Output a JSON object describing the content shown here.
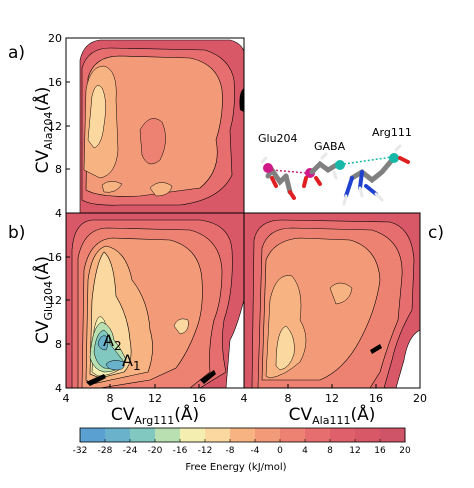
{
  "panels": [
    {
      "label": "a)",
      "ylabel_main": "CV",
      "ylabel_sub": "Ala204",
      "ylabel_unit": "(Å)"
    },
    {
      "label": "b)",
      "ylabel_main": "CV",
      "ylabel_sub": "Glu204",
      "ylabel_unit": "(Å)",
      "xlabel_main": "CV",
      "xlabel_sub": "Arg111",
      "xlabel_unit": "(Å)"
    },
    {
      "label": "c)",
      "xlabel_main": "CV",
      "xlabel_sub": "Ala111",
      "xlabel_unit": "(Å)"
    }
  ],
  "annotations": {
    "A2": {
      "letter": "A",
      "sub": "2"
    },
    "A1": {
      "letter": "A",
      "sub": "1"
    }
  },
  "molecule_labels": {
    "glu": "Glu204",
    "gaba": "GABA",
    "arg": "Arg111"
  },
  "colors": {
    "atom_carbon": "#808080",
    "atom_oxygen": "#e02020",
    "atom_nitrogen": "#2040d0",
    "atom_hydrogen": "#e8e8e8",
    "marker_magenta": "#d0188a",
    "marker_teal": "#18b8a8",
    "bond_dotted_left": "#c8286e",
    "bond_dotted_right": "#18b8a8"
  },
  "chart_data": {
    "type": "heatmap",
    "axis_ranges": {
      "x": [
        4,
        20
      ],
      "y": [
        4,
        20
      ]
    },
    "panel_ticks": {
      "a_y": [
        "8",
        "12",
        "16",
        "20"
      ],
      "b_y": [
        "4",
        "8",
        "12",
        "16"
      ],
      "b_x": [
        "4",
        "8",
        "12",
        "16",
        "4"
      ],
      "c_x": [
        "8",
        "12",
        "16",
        "20"
      ]
    },
    "colorbar": {
      "label": "Free Energy (kJ/mol)",
      "ticks": [
        "-32",
        "-28",
        "-24",
        "-20",
        "-16",
        "-12",
        "-8",
        "-4",
        "0",
        "4",
        "8",
        "12",
        "16",
        "20"
      ],
      "levels": [
        -32,
        -28,
        -24,
        -20,
        -16,
        -12,
        -8,
        -4,
        0,
        4,
        8,
        12,
        16,
        20
      ],
      "colors": [
        "#5aa0d0",
        "#6ab2cc",
        "#80c8c0",
        "#b8e0b0",
        "#f4eeb0",
        "#fad8a0",
        "#f7b482",
        "#f39a78",
        "#ee8272",
        "#e76e6e",
        "#df606a",
        "#d85868",
        "#d05468"
      ]
    },
    "minima": [
      {
        "name": "A2",
        "x": 7.2,
        "y": 8.6,
        "free_energy": -28
      },
      {
        "name": "A1",
        "x": 8.6,
        "y": 6.4,
        "free_energy": -28
      }
    ]
  }
}
